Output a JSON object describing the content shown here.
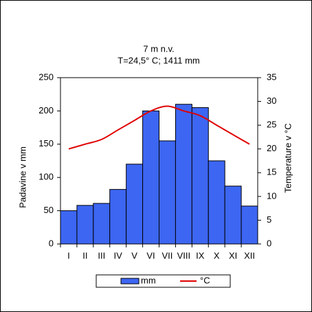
{
  "chart_data": {
    "type": "bar",
    "title": "7 m n.v.",
    "subtitle": "T=24,5° C; 1411 mm",
    "y_label": "Padavine v mm",
    "y2_label": "Temperature v °C",
    "categories": [
      "I",
      "II",
      "III",
      "IV",
      "V",
      "VI",
      "VII",
      "VIII",
      "IX",
      "X",
      "XI",
      "XII"
    ],
    "series": [
      {
        "name": "mm",
        "color": "#3d66f2",
        "type": "bar",
        "values": [
          50,
          58,
          61,
          82,
          120,
          200,
          155,
          210,
          205,
          125,
          87,
          57
        ]
      },
      {
        "name": "°C",
        "color": "#e00000",
        "type": "line",
        "axis": "y2",
        "values": [
          20,
          21,
          22,
          24,
          26,
          28,
          29,
          28,
          27,
          25,
          23,
          21
        ]
      }
    ],
    "ylim": [
      0,
      250
    ],
    "yticks": [
      0,
      50,
      100,
      150,
      200,
      250
    ],
    "y2lim": [
      0,
      35
    ],
    "y2ticks": [
      0,
      5,
      10,
      15,
      20,
      25,
      30,
      35
    ],
    "grid": false,
    "legend": "bottom"
  }
}
